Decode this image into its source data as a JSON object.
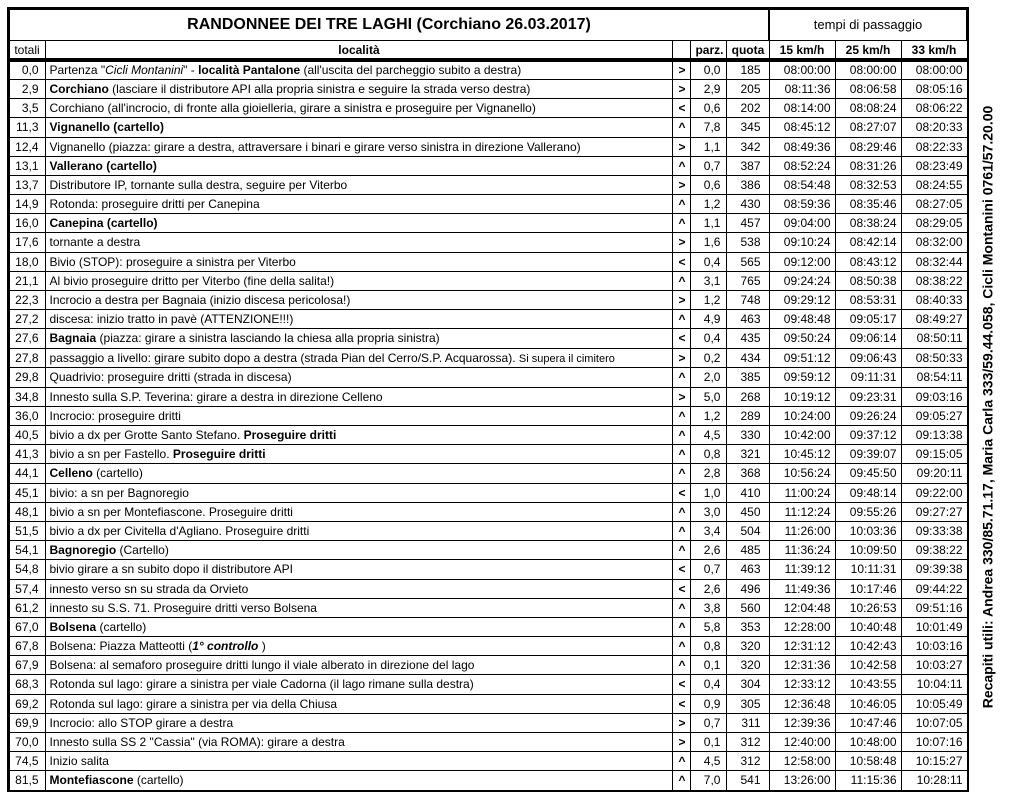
{
  "title": "RANDONNEE DEI TRE LAGHI (Corchiano 26.03.2017)",
  "tempi_label": "tempi di passaggio",
  "side_text": "Recapiti utili:  Andrea 330/85.71.17, Maria Carla 333/59.44.058, Cicli Montanini 0761/57.20.00",
  "headers": {
    "totali": "totali",
    "localita": "località",
    "parz": "parz.",
    "quota": "quota",
    "s15": "15 km/h",
    "s25": "25 km/h",
    "s33": "33 km/h"
  },
  "rows": [
    {
      "tot": "0,0",
      "loc": "Partenza \"<i>Cicli Montanini</i>\" - <b>località Pantalone</b> (all'uscita del parcheggio subito a destra)",
      "dir": ">",
      "parz": "0,0",
      "q": "185",
      "t15": "08:00:00",
      "t25": "08:00:00",
      "t33": "08:00:00"
    },
    {
      "tot": "2,9",
      "loc": "<b>Corchiano</b> (lasciare il distributore API alla propria sinistra e seguire la strada verso destra)",
      "dir": ">",
      "parz": "2,9",
      "q": "205",
      "t15": "08:11:36",
      "t25": "08:06:58",
      "t33": "08:05:16"
    },
    {
      "tot": "3,5",
      "loc": "Corchiano (all'incrocio, di fronte alla gioielleria, girare a sinistra e proseguire per Vignanello)",
      "dir": "<",
      "parz": "0,6",
      "q": "202",
      "t15": "08:14:00",
      "t25": "08:08:24",
      "t33": "08:06:22"
    },
    {
      "tot": "11,3",
      "loc": "<b>Vignanello (cartello)</b>",
      "dir": "^",
      "parz": "7,8",
      "q": "345",
      "t15": "08:45:12",
      "t25": "08:27:07",
      "t33": "08:20:33"
    },
    {
      "tot": "12,4",
      "loc": "Vignanello (piazza: girare a destra, attraversare i binari e girare verso sinistra in direzione Vallerano)",
      "dir": ">",
      "parz": "1,1",
      "q": "342",
      "t15": "08:49:36",
      "t25": "08:29:46",
      "t33": "08:22:33"
    },
    {
      "tot": "13,1",
      "loc": "<b>Vallerano (cartello)</b>",
      "dir": "^",
      "parz": "0,7",
      "q": "387",
      "t15": "08:52:24",
      "t25": "08:31:26",
      "t33": "08:23:49"
    },
    {
      "tot": "13,7",
      "loc": "Distributore IP, tornante sulla destra, seguire per Viterbo",
      "dir": ">",
      "parz": "0,6",
      "q": "386",
      "t15": "08:54:48",
      "t25": "08:32:53",
      "t33": "08:24:55"
    },
    {
      "tot": "14,9",
      "loc": "Rotonda: proseguire dritti per Canepina",
      "dir": "^",
      "parz": "1,2",
      "q": "430",
      "t15": "08:59:36",
      "t25": "08:35:46",
      "t33": "08:27:05"
    },
    {
      "tot": "16,0",
      "loc": "<b>Canepina (cartello)</b>",
      "dir": "^",
      "parz": "1,1",
      "q": "457",
      "t15": "09:04:00",
      "t25": "08:38:24",
      "t33": "08:29:05"
    },
    {
      "tot": "17,6",
      "loc": "tornante a destra",
      "dir": ">",
      "parz": "1,6",
      "q": "538",
      "t15": "09:10:24",
      "t25": "08:42:14",
      "t33": "08:32:00"
    },
    {
      "tot": "18,0",
      "loc": "Bivio (STOP): proseguire a sinistra per Viterbo",
      "dir": "<",
      "parz": "0,4",
      "q": "565",
      "t15": "09:12:00",
      "t25": "08:43:12",
      "t33": "08:32:44"
    },
    {
      "tot": "21,1",
      "loc": "Al bivio proseguire dritto per Viterbo (fine della salita!)",
      "dir": "^",
      "parz": "3,1",
      "q": "765",
      "t15": "09:24:24",
      "t25": "08:50:38",
      "t33": "08:38:22"
    },
    {
      "tot": "22,3",
      "loc": "Incrocio a destra per Bagnaia (inizio discesa pericolosa!)",
      "dir": ">",
      "parz": "1,2",
      "q": "748",
      "t15": "09:29:12",
      "t25": "08:53:31",
      "t33": "08:40:33"
    },
    {
      "tot": "27,2",
      "loc": "discesa: inizio tratto in pavè (ATTENZIONE!!!)",
      "dir": "^",
      "parz": "4,9",
      "q": "463",
      "t15": "09:48:48",
      "t25": "09:05:17",
      "t33": "08:49:27"
    },
    {
      "tot": "27,6",
      "loc": "<b>Bagnaia</b> (piazza: girare a sinistra lasciando la chiesa alla propria sinistra)",
      "dir": "<",
      "parz": "0,4",
      "q": "435",
      "t15": "09:50:24",
      "t25": "09:06:14",
      "t33": "08:50:11"
    },
    {
      "tot": "27,8",
      "loc": "passaggio a livello: girare subito dopo a destra (strada Pian del Cerro/S.P. Acquarossa). <span style='font-size:11px'>Si supera il cimitero</span>",
      "dir": ">",
      "parz": "0,2",
      "q": "434",
      "t15": "09:51:12",
      "t25": "09:06:43",
      "t33": "08:50:33"
    },
    {
      "tot": "29,8",
      "loc": "Quadrivio: proseguire dritti (strada in discesa)",
      "dir": "^",
      "parz": "2,0",
      "q": "385",
      "t15": "09:59:12",
      "t25": "09:11:31",
      "t33": "08:54:11"
    },
    {
      "tot": "34,8",
      "loc": "Innesto sulla S.P. Teverina: girare a destra in direzione Celleno",
      "dir": ">",
      "parz": "5,0",
      "q": "268",
      "t15": "10:19:12",
      "t25": "09:23:31",
      "t33": "09:03:16"
    },
    {
      "tot": "36,0",
      "loc": "Incrocio: proseguire dritti",
      "dir": "^",
      "parz": "1,2",
      "q": "289",
      "t15": "10:24:00",
      "t25": "09:26:24",
      "t33": "09:05:27"
    },
    {
      "tot": "40,5",
      "loc": "bivio a dx per Grotte Santo Stefano. <b>Proseguire dritti</b>",
      "dir": "^",
      "parz": "4,5",
      "q": "330",
      "t15": "10:42:00",
      "t25": "09:37:12",
      "t33": "09:13:38"
    },
    {
      "tot": "41,3",
      "loc": "bivio a sn per Fastello. <b>Proseguire dritti</b>",
      "dir": "^",
      "parz": "0,8",
      "q": "321",
      "t15": "10:45:12",
      "t25": "09:39:07",
      "t33": "09:15:05"
    },
    {
      "tot": "44,1",
      "loc": "<b>Celleno</b> (cartello)",
      "dir": "^",
      "parz": "2,8",
      "q": "368",
      "t15": "10:56:24",
      "t25": "09:45:50",
      "t33": "09:20:11"
    },
    {
      "tot": "45,1",
      "loc": "bivio: a sn per Bagnoregio",
      "dir": "<",
      "parz": "1,0",
      "q": "410",
      "t15": "11:00:24",
      "t25": "09:48:14",
      "t33": "09:22:00"
    },
    {
      "tot": "48,1",
      "loc": "bivio a sn per Montefiascone. Proseguire dritti",
      "dir": "^",
      "parz": "3,0",
      "q": "450",
      "t15": "11:12:24",
      "t25": "09:55:26",
      "t33": "09:27:27"
    },
    {
      "tot": "51,5",
      "loc": "bivio a dx per Civitella d'Agliano. Proseguire dritti",
      "dir": "^",
      "parz": "3,4",
      "q": "504",
      "t15": "11:26:00",
      "t25": "10:03:36",
      "t33": "09:33:38"
    },
    {
      "tot": "54,1",
      "loc": "<b>Bagnoregio</b> (Cartello)",
      "dir": "^",
      "parz": "2,6",
      "q": "485",
      "t15": "11:36:24",
      "t25": "10:09:50",
      "t33": "09:38:22"
    },
    {
      "tot": "54,8",
      "loc": "bivio girare a sn subito dopo il distributore API",
      "dir": "<",
      "parz": "0,7",
      "q": "463",
      "t15": "11:39:12",
      "t25": "10:11:31",
      "t33": "09:39:38"
    },
    {
      "tot": "57,4",
      "loc": "innesto verso sn su strada da Orvieto",
      "dir": "<",
      "parz": "2,6",
      "q": "496",
      "t15": "11:49:36",
      "t25": "10:17:46",
      "t33": "09:44:22"
    },
    {
      "tot": "61,2",
      "loc": "innesto su S.S. 71. Proseguire dritti verso Bolsena",
      "dir": "^",
      "parz": "3,8",
      "q": "560",
      "t15": "12:04:48",
      "t25": "10:26:53",
      "t33": "09:51:16"
    },
    {
      "tot": "67,0",
      "loc": "<b>Bolsena</b> (cartello)",
      "dir": "^",
      "parz": "5,8",
      "q": "353",
      "t15": "12:28:00",
      "t25": "10:40:48",
      "t33": "10:01:49"
    },
    {
      "tot": "67,8",
      "loc": "Bolsena: Piazza Matteotti (<b><i>1° controllo</i></b> )",
      "dir": "^",
      "parz": "0,8",
      "q": "320",
      "t15": "12:31:12",
      "t25": "10:42:43",
      "t33": "10:03:16"
    },
    {
      "tot": "67,9",
      "loc": "Bolsena: al semaforo proseguire dritti lungo il viale alberato in direzione del lago",
      "dir": "^",
      "parz": "0,1",
      "q": "320",
      "t15": "12:31:36",
      "t25": "10:42:58",
      "t33": "10:03:27"
    },
    {
      "tot": "68,3",
      "loc": "Rotonda sul lago: girare a sinistra per viale Cadorna (il lago rimane sulla destra)",
      "dir": "<",
      "parz": "0,4",
      "q": "304",
      "t15": "12:33:12",
      "t25": "10:43:55",
      "t33": "10:04:11"
    },
    {
      "tot": "69,2",
      "loc": "Rotonda sul lago: girare a sinistra per via della Chiusa",
      "dir": "<",
      "parz": "0,9",
      "q": "305",
      "t15": "12:36:48",
      "t25": "10:46:05",
      "t33": "10:05:49"
    },
    {
      "tot": "69,9",
      "loc": "Incrocio: allo STOP girare a destra",
      "dir": ">",
      "parz": "0,7",
      "q": "311",
      "t15": "12:39:36",
      "t25": "10:47:46",
      "t33": "10:07:05"
    },
    {
      "tot": "70,0",
      "loc": "Innesto sulla SS 2 \"Cassia\" (via ROMA): girare a destra",
      "dir": ">",
      "parz": "0,1",
      "q": "312",
      "t15": "12:40:00",
      "t25": "10:48:00",
      "t33": "10:07:16"
    },
    {
      "tot": "74,5",
      "loc": "Inizio salita",
      "dir": "^",
      "parz": "4,5",
      "q": "312",
      "t15": "12:58:00",
      "t25": "10:58:48",
      "t33": "10:15:27"
    },
    {
      "tot": "81,5",
      "loc": "<b>Montefiascone</b> (cartello)",
      "dir": "^",
      "parz": "7,0",
      "q": "541",
      "t15": "13:26:00",
      "t25": "11:15:36",
      "t33": "10:28:11"
    }
  ]
}
